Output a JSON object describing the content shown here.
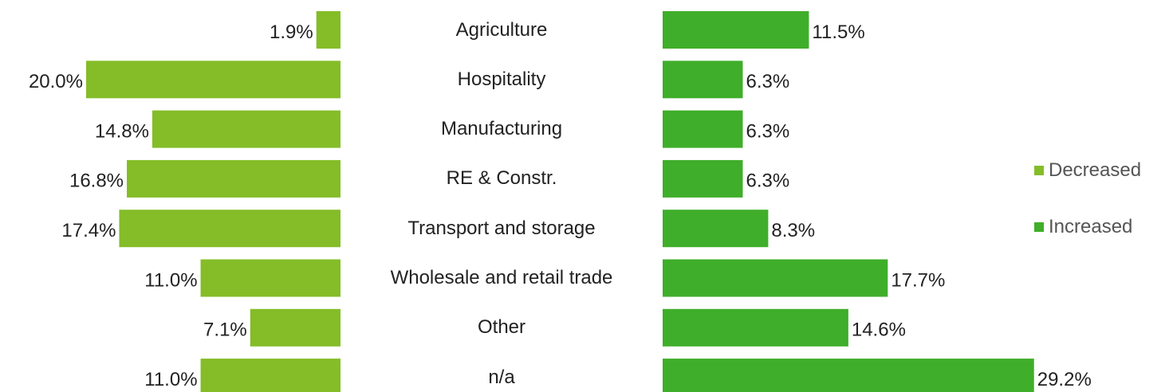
{
  "chart_data": {
    "type": "butterfly",
    "categories": [
      "Agriculture",
      "Hospitality",
      "Manufacturing",
      "RE & Constr.",
      "Transport and storage",
      "Wholesale and retail trade",
      "Other",
      "n/a"
    ],
    "series": [
      {
        "name": "Decreased",
        "color": "#84bd28",
        "values": [
          1.9,
          20.0,
          14.8,
          16.8,
          17.4,
          11.0,
          7.1,
          11.0
        ],
        "value_labels": [
          "1.9%",
          "20.0%",
          "14.8%",
          "16.8%",
          "17.4%",
          "11.0%",
          "7.1%",
          "11.0%"
        ]
      },
      {
        "name": "Increased",
        "color": "#3fae2a",
        "values": [
          11.5,
          6.3,
          6.3,
          6.3,
          8.3,
          17.7,
          14.6,
          29.2
        ],
        "value_labels": [
          "11.5%",
          "6.3%",
          "6.3%",
          "6.3%",
          "8.3%",
          "17.7%",
          "14.6%",
          "29.2%"
        ]
      }
    ],
    "legend": "right"
  }
}
